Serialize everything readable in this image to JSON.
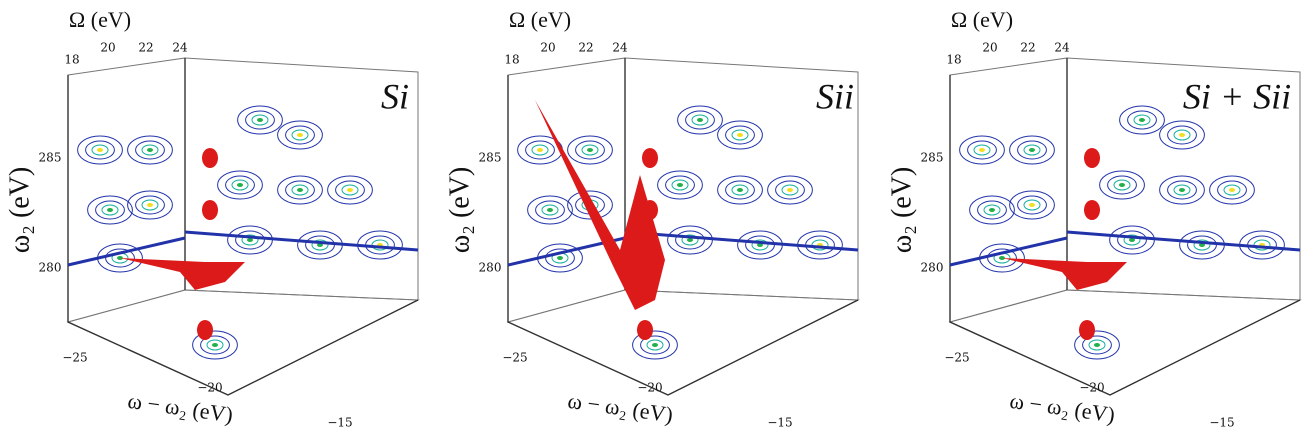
{
  "panels": [
    {
      "label": "Si",
      "omega_label": "Ω (eV)",
      "omega_ticks": [
        "18",
        "20",
        "22",
        "24"
      ],
      "w2_label": "ω₂ (eV)",
      "w2_ticks": [
        "285",
        "280"
      ],
      "dw_label": "ω − ω₂ (eV)",
      "dw_ticks": [
        "−25",
        "−20",
        "−15"
      ]
    },
    {
      "label": "Sii",
      "omega_label": "Ω (eV)",
      "omega_ticks": [
        "18",
        "20",
        "22",
        "24"
      ],
      "w2_label": "ω₂ (eV)",
      "w2_ticks": [
        "285",
        "280"
      ],
      "dw_label": "ω − ω₂ (eV)",
      "dw_ticks": [
        "−25",
        "−20",
        "−15"
      ]
    },
    {
      "label": "Si + Sii",
      "omega_label": "Ω (eV)",
      "omega_ticks": [
        "18",
        "20",
        "22",
        "24"
      ],
      "w2_label": "ω₂ (eV)",
      "w2_ticks": [
        "285",
        "280"
      ],
      "dw_label": "ω − ω₂ (eV)",
      "dw_ticks": [
        "−25",
        "−20",
        "−15"
      ]
    }
  ]
}
